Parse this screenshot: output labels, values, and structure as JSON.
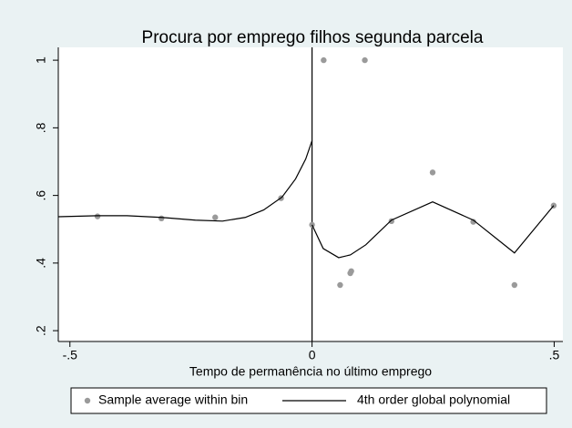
{
  "chart_data": {
    "type": "scatter-line",
    "title": "Procura por emprego filhos segunda parcela",
    "x_label": "Tempo de permanência no último emprego",
    "xlim": [
      -0.524,
      0.518
    ],
    "ylim": [
      0.168,
      1.038
    ],
    "xticks": [
      {
        "value": -0.5,
        "label": "-.5"
      },
      0,
      {
        "value": 0.5,
        "label": ".5"
      }
    ],
    "yticks": [
      {
        "value": 0.2,
        "label": ".2"
      },
      {
        "value": 0.4,
        "label": ".4"
      },
      {
        "value": 0.6,
        "label": ".6"
      },
      {
        "value": 0.8,
        "label": ".8"
      },
      1
    ],
    "xline": 0,
    "series": [
      {
        "name": "Sample average within bin",
        "kind": "scatter",
        "color": "#9a9a9a",
        "x": [
          -0.443,
          -0.311,
          -0.2,
          -0.064,
          0.0,
          0.024,
          0.109,
          0.058,
          0.081,
          0.079,
          0.164,
          0.249,
          0.333,
          0.418,
          0.499
        ],
        "values": [
          0.538,
          0.532,
          0.535,
          0.592,
          0.513,
          1.0,
          1.0,
          0.335,
          0.376,
          0.37,
          0.524,
          0.668,
          0.522,
          0.335,
          0.57
        ]
      },
      {
        "name": "4th order global polynomial",
        "kind": "line",
        "color": "#000000",
        "x": [
          -0.524,
          -0.443,
          -0.382,
          -0.311,
          -0.241,
          -0.185,
          -0.138,
          -0.1,
          -0.062,
          -0.034,
          -0.013,
          0.0,
          null,
          0.0,
          0.023,
          0.055,
          0.079,
          0.111,
          0.164,
          0.249,
          0.333,
          0.418,
          0.499
        ],
        "values": [
          0.537,
          0.54,
          0.54,
          0.535,
          0.527,
          0.524,
          0.535,
          0.557,
          0.595,
          0.649,
          0.708,
          0.762,
          null,
          0.513,
          0.443,
          0.416,
          0.424,
          0.454,
          0.527,
          0.581,
          0.527,
          0.43,
          0.57
        ]
      }
    ],
    "legend": "bottom"
  }
}
